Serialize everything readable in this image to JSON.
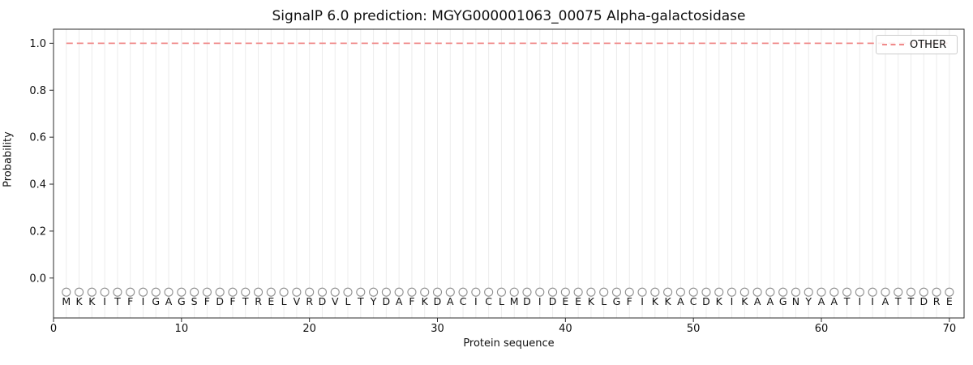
{
  "figure": {
    "title": "SignalP 6.0 prediction: MGYG000001063_00075 Alpha-galactosidase",
    "xlabel": "Protein sequence",
    "ylabel": "Probability",
    "legend": {
      "label": "OTHER"
    }
  },
  "chart_data": {
    "type": "line",
    "title": "SignalP 6.0 prediction: MGYG000001063_00075 Alpha-galactosidase",
    "xlabel": "Protein sequence",
    "ylabel": "Probability",
    "xlim": [
      0,
      71.15
    ],
    "ylim": [
      -0.17,
      1.06
    ],
    "xticks": [
      0,
      10,
      20,
      30,
      40,
      50,
      60,
      70
    ],
    "yticks": [
      0.0,
      0.2,
      0.4,
      0.6,
      0.8,
      1.0
    ],
    "ytick_labels": [
      "0.0",
      "0.2",
      "0.4",
      "0.6",
      "0.8",
      "1.0"
    ],
    "grid": "light vertical gridline at every residue position, no horizontal gridlines",
    "legend_position": "upper-right",
    "series": [
      {
        "name": "OTHER",
        "type": "line",
        "line_style": "dashed",
        "color": "#f08a8a",
        "x": [
          1,
          2,
          3,
          4,
          5,
          6,
          7,
          8,
          9,
          10,
          11,
          12,
          13,
          14,
          15,
          16,
          17,
          18,
          19,
          20,
          21,
          22,
          23,
          24,
          25,
          26,
          27,
          28,
          29,
          30,
          31,
          32,
          33,
          34,
          35,
          36,
          37,
          38,
          39,
          40,
          41,
          42,
          43,
          44,
          45,
          46,
          47,
          48,
          49,
          50,
          51,
          52,
          53,
          54,
          55,
          56,
          57,
          58,
          59,
          60,
          61,
          62,
          63,
          64,
          65,
          66,
          67,
          68,
          69,
          70
        ],
        "values": [
          1.0,
          1.0,
          1.0,
          1.0,
          1.0,
          1.0,
          1.0,
          1.0,
          1.0,
          1.0,
          1.0,
          1.0,
          1.0,
          1.0,
          1.0,
          1.0,
          1.0,
          1.0,
          1.0,
          1.0,
          1.0,
          1.0,
          1.0,
          1.0,
          1.0,
          1.0,
          1.0,
          1.0,
          1.0,
          1.0,
          1.0,
          1.0,
          1.0,
          1.0,
          1.0,
          1.0,
          1.0,
          1.0,
          1.0,
          1.0,
          1.0,
          1.0,
          1.0,
          1.0,
          1.0,
          1.0,
          1.0,
          1.0,
          1.0,
          1.0,
          1.0,
          1.0,
          1.0,
          1.0,
          1.0,
          1.0,
          1.0,
          1.0,
          1.0,
          1.0,
          1.0,
          1.0,
          1.0,
          1.0,
          1.0,
          1.0,
          1.0,
          1.0,
          1.0,
          1.0
        ]
      }
    ],
    "sequence": [
      "M",
      "K",
      "K",
      "I",
      "T",
      "F",
      "I",
      "G",
      "A",
      "G",
      "S",
      "F",
      "D",
      "F",
      "T",
      "R",
      "E",
      "L",
      "V",
      "R",
      "D",
      "V",
      "L",
      "T",
      "Y",
      "D",
      "A",
      "F",
      "K",
      "D",
      "A",
      "C",
      "I",
      "C",
      "L",
      "M",
      "D",
      "I",
      "D",
      "E",
      "E",
      "K",
      "L",
      "G",
      "F",
      "I",
      "K",
      "K",
      "A",
      "C",
      "D",
      "K",
      "I",
      "K",
      "A",
      "A",
      "G",
      "N",
      "Y",
      "A",
      "A",
      "T",
      "I",
      "I",
      "A",
      "T",
      "T",
      "D",
      "R",
      "E"
    ],
    "sequence_markers": {
      "symbol": "open-circle",
      "y": -0.06,
      "color": "#909090"
    }
  },
  "colors": {
    "grid": "#ececec",
    "spine": "#2b2b2b",
    "text": "#111111",
    "other_line": "#f08a8a",
    "marker": "#909090",
    "legend_border": "#cccccc"
  }
}
